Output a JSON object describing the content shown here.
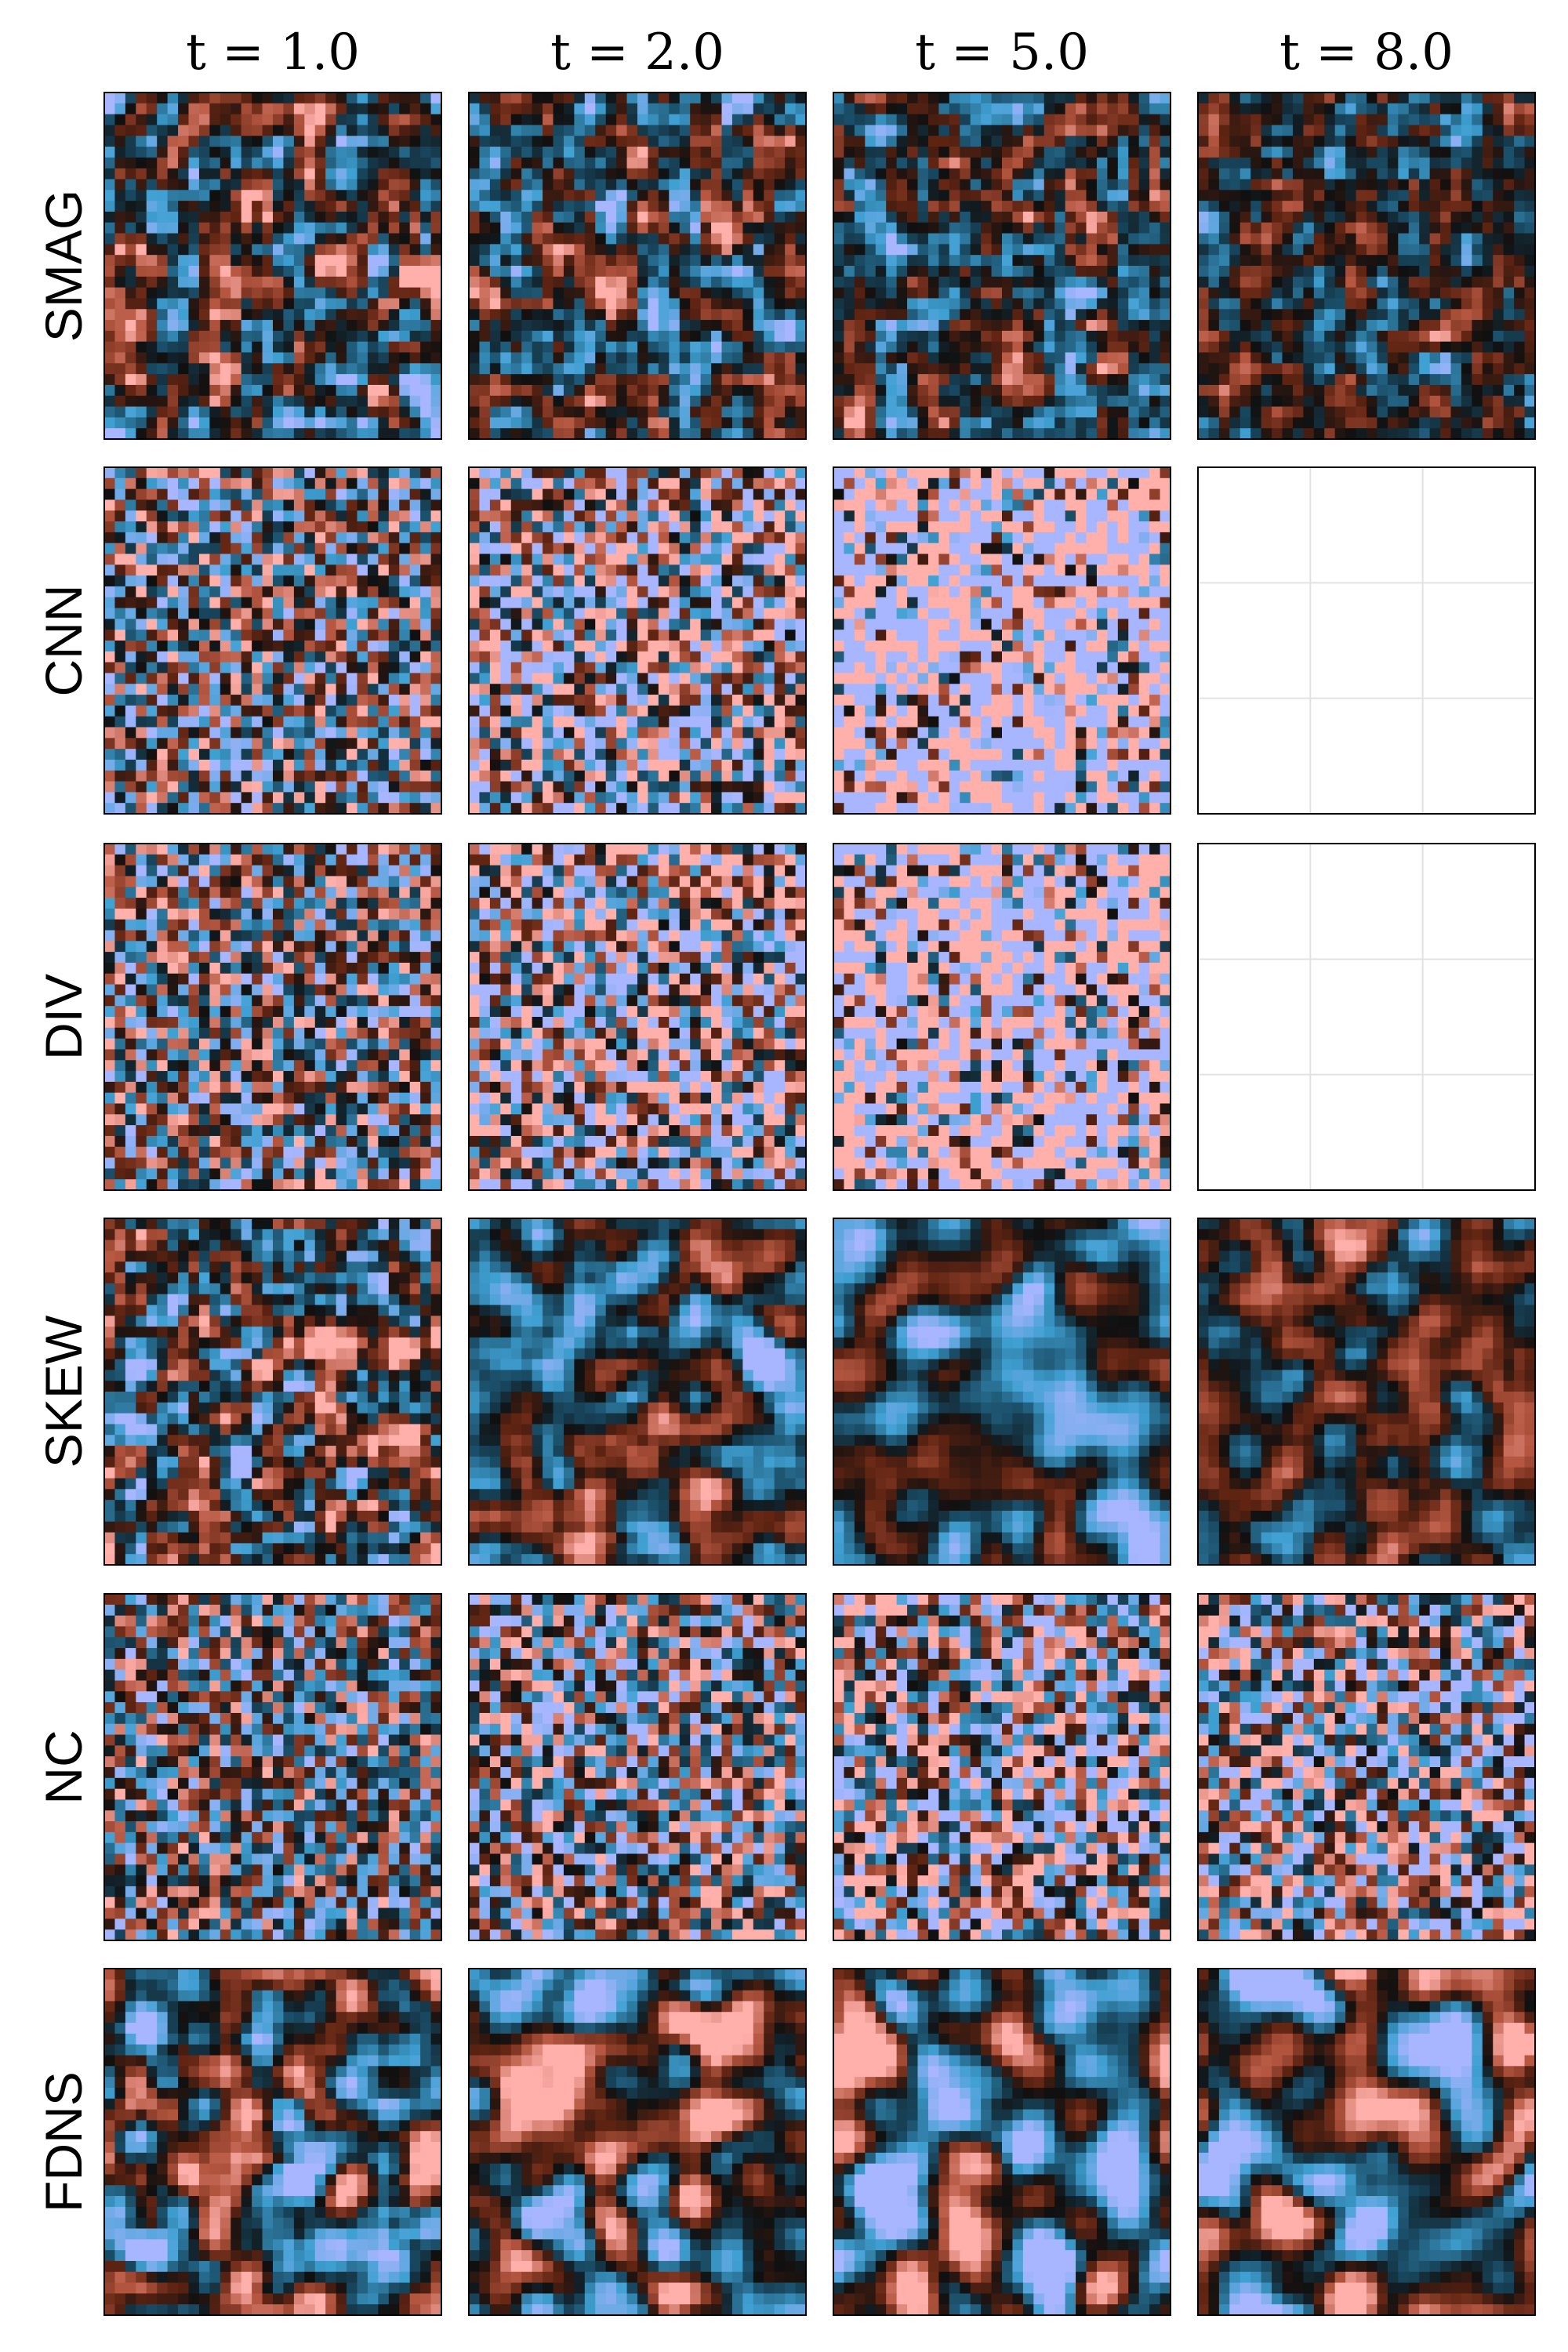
{
  "columns": [
    "t = 1.0",
    "t = 2.0",
    "t = 5.0",
    "t = 8.0"
  ],
  "rows": [
    "SMAG",
    "CNN",
    "DIV",
    "SKEW",
    "NC",
    "FDNS"
  ]
}
